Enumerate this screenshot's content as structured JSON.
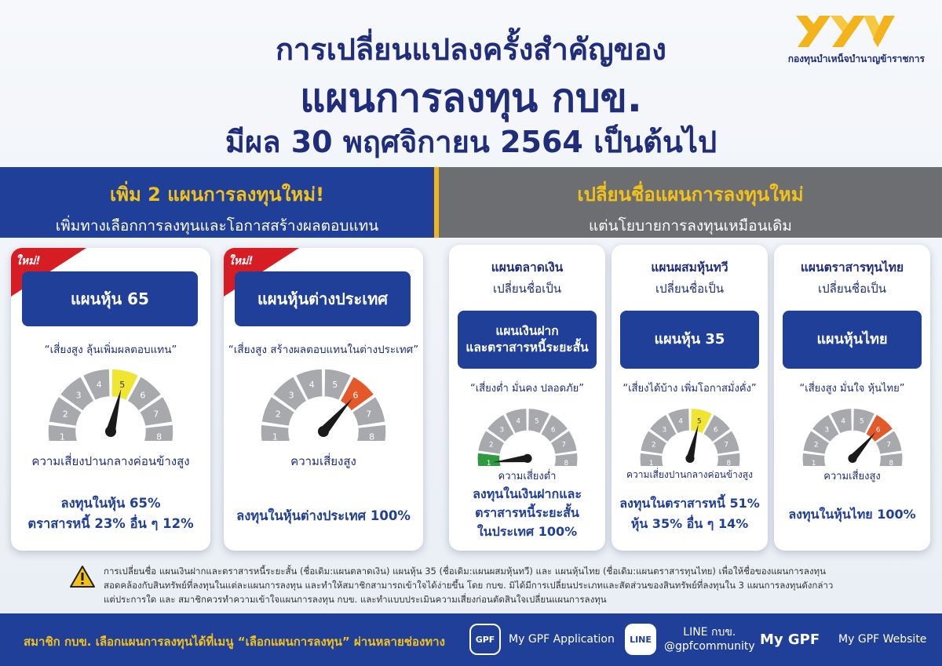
{
  "header": {
    "title_line1": "การเปลี่ยนแปลงครั้งสำคัญของ",
    "title_line2": "แผนการลงทุน กบข.",
    "title_line3": "มีผล 30 พฤศจิกายน 2564 เป็นต้นไป",
    "logo_text": "กองทุนบำเหน็จบำนาญข้าราชการ"
  },
  "left_banner": {
    "title": "เพิ่ม 2 แผนการลงทุนใหม่!",
    "subtitle": "เพิ่มทางเลือกการลงทุนและโอกาสสร้างผลตอบแทน"
  },
  "right_banner": {
    "title": "เปลี่ยนชื่อแผนการลงทุนใหม่",
    "subtitle": "แต่นโยบายการลงทุนเหมือนเดิม"
  },
  "new_plans": [
    {
      "badge": "ใหม่!",
      "name": "แผนหุ้น 65",
      "quote": "“เสี่ยงสูง ลุ้นเพิ่มผลตอบแทน”",
      "risk_level": 5,
      "risk_color": "#f0e531",
      "risk_text": "ความเสี่ยงปานกลางค่อนข้างสูง",
      "alloc_line1": "ลงทุนในหุ้น 65%",
      "alloc_line2": "ตราสารหนี้ 23% อื่น ๆ 12%"
    },
    {
      "badge": "ใหม่!",
      "name": "แผนหุ้นต่างประเทศ",
      "quote": "“เสี่ยงสูง สร้างผลตอบแทนในต่างประเทศ”",
      "risk_level": 6,
      "risk_color": "#e3592a",
      "risk_text": "ความเสี่ยงสูง",
      "alloc_line1": "ลงทุนในหุ้นต่างประเทศ 100%",
      "alloc_line2": ""
    }
  ],
  "renamed_plans": [
    {
      "old_name": "แผนตลาดเงิน",
      "rename_label": "เปลี่ยนชื่อเป็น",
      "new_name_line1": "แผนเงินฝาก",
      "new_name_line2": "และตราสารหนี้ระยะสั้น",
      "quote": "“เสี่ยงต่ำ มั่นคง ปลอดภัย”",
      "risk_level": 1,
      "risk_color": "#2e9a3f",
      "risk_text": "ความเสี่ยงต่ำ",
      "alloc_line1": "ลงทุนในเงินฝากและ",
      "alloc_line2": "ตราสารหนี้ระยะสั้น",
      "alloc_line3": "ในประเทศ 100%"
    },
    {
      "old_name": "แผนผสมหุ้นทวี",
      "rename_label": "เปลี่ยนชื่อเป็น",
      "new_name_line1": "แผนหุ้น 35",
      "new_name_line2": "",
      "quote": "“เสี่ยงได้บ้าง เพิ่มโอกาสมั่งคั่ง”",
      "risk_level": 5,
      "risk_color": "#f0e531",
      "risk_text": "ความเสี่ยงปานกลางค่อนข้างสูง",
      "alloc_line1": "ลงทุนในตราสารหนี้ 51%",
      "alloc_line2": "หุ้น 35% อื่น ๆ 14%",
      "alloc_line3": ""
    },
    {
      "old_name": "แผนตราสารทุนไทย",
      "rename_label": "เปลี่ยนชื่อเป็น",
      "new_name_line1": "แผนหุ้นไทย",
      "new_name_line2": "",
      "quote": "“เสี่ยงสูง มั่นใจ หุ้นไทย”",
      "risk_level": 6,
      "risk_color": "#e3592a",
      "risk_text": "ความเสี่ยงสูง",
      "alloc_line1": "ลงทุนในหุ้นไทย 100%",
      "alloc_line2": "",
      "alloc_line3": ""
    }
  ],
  "gauge_segments": [
    "1",
    "2",
    "3",
    "4",
    "5",
    "6",
    "7",
    "8"
  ],
  "note": {
    "line1": "การเปลี่ยนชื่อ แผนเงินฝากและตราสารหนี้ระยะสั้น (ชื่อเดิม:แผนตลาดเงิน) แผนหุ้น 35 (ชื่อเดิม:แผนผสมหุ้นทวี) และ แผนหุ้นไทย (ชื่อเดิม:แผนตราสารทุนไทย) เพื่อให้ชื่อของแผนการลงทุน",
    "line2": "สอดคล้องกับสินทรัพย์ที่ลงทุนในแต่ละแผนการลงทุน และทำให้สมาชิกสามารถเข้าใจได้ง่ายขึ้น โดย กบข. มิได้มีการเปลี่ยนประเภทและสัดส่วนของสินทรัพย์ที่ลงทุนใน 3 แผนการลงทุนดังกล่าว",
    "line3": "แต่ประการใด และ สมาชิกควรทำความเข้าใจแผนการลงทุน กบข. และทำแบบประเมินความเสี่ยงก่อนตัดสินใจเปลี่ยนแผนการลงทุน"
  },
  "footer": {
    "text": "สมาชิก กบข. เลือกแผนการลงทุนได้ที่เมนู “เลือกแผนการลงทุน” ผ่านหลายช่องทาง",
    "app_badge": "GPF",
    "app_label": "My GPF Application",
    "line_badge": "LINE",
    "line_label1": "LINE กบข.",
    "line_label2": "@gpfcommunity",
    "web_badge": "My GPF",
    "web_label": "My GPF Website"
  },
  "colors": {
    "navy": "#1f3f99",
    "gold": "#f3c21a",
    "grey_banner": "#6d6e71",
    "ribbon_red": "#d71d24"
  }
}
